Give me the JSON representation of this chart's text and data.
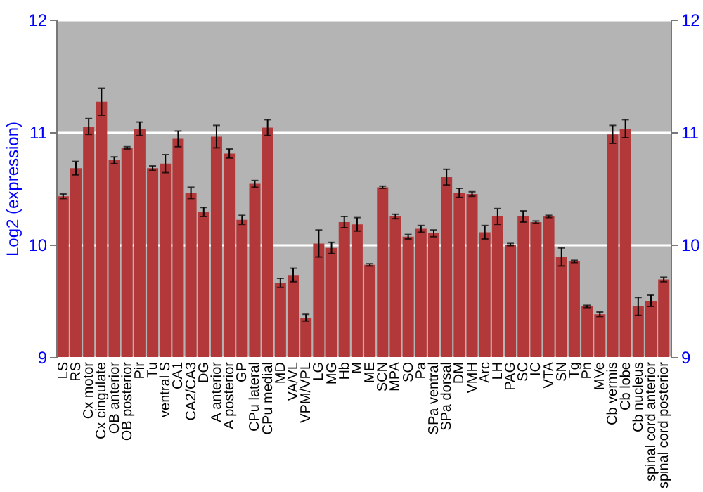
{
  "chart_data": {
    "type": "bar",
    "ylabel": "Log2 (expression)",
    "categories": [
      "LS",
      "RS",
      "Cx motor",
      "Cx cingulate",
      "OB anterior",
      "OB posterior",
      "Pir",
      "Tu",
      "ventral S",
      "CA1",
      "CA2/CA3",
      "DG",
      "A anterior",
      "A posterior",
      "GP",
      "CPu lateral",
      "CPu medial",
      "MD",
      "VA/VL",
      "VPM/VPL",
      "LG",
      "MG",
      "Hb",
      "M",
      "ME",
      "SCN",
      "MPA",
      "SO",
      "Pa",
      "SPa ventral",
      "SPa dorsal",
      "DM",
      "VMH",
      "Arc",
      "LH",
      "PAG",
      "SC",
      "IC",
      "VTA",
      "SN",
      "Tg",
      "Pn",
      "MVe",
      "Cb vermis",
      "Cb lobe",
      "Cb nucleus",
      "spinal cord anterior",
      "spinal cord posterior"
    ],
    "series": [
      {
        "color": "#b3383a",
        "values": [
          10.43,
          10.68,
          11.05,
          11.27,
          10.75,
          10.86,
          11.03,
          10.68,
          10.72,
          10.94,
          10.46,
          10.29,
          10.96,
          10.81,
          10.22,
          10.54,
          11.04,
          9.66,
          9.73,
          9.35,
          10.01,
          9.97,
          10.2,
          10.18,
          9.82,
          10.51,
          10.25,
          10.07,
          10.14,
          10.1,
          10.6,
          10.46,
          10.45,
          10.11,
          10.25,
          10,
          10.25,
          10.2,
          10.25,
          9.89,
          9.85,
          9.45,
          9.38,
          10.98,
          11.03,
          9.45,
          9.5,
          9.69
        ],
        "errors": [
          0.02,
          0.06,
          0.07,
          0.12,
          0.03,
          0.01,
          0.06,
          0.02,
          0.08,
          0.07,
          0.05,
          0.04,
          0.1,
          0.04,
          0.04,
          0.03,
          0.07,
          0.04,
          0.06,
          0.03,
          0.12,
          0.05,
          0.05,
          0.06,
          0.01,
          0.01,
          0.02,
          0.02,
          0.03,
          0.03,
          0.07,
          0.04,
          0.02,
          0.06,
          0.07,
          0.01,
          0.05,
          0.01,
          0.01,
          0.08,
          0.01,
          0.01,
          0.02,
          0.08,
          0.08,
          0.08,
          0.05,
          0.02
        ]
      }
    ],
    "ylim": [
      9,
      12
    ],
    "yticks": [
      9,
      10,
      11,
      12
    ],
    "y2lim": [
      9,
      12
    ],
    "y2ticks": [
      9,
      10,
      11,
      12
    ],
    "grid": "y"
  }
}
